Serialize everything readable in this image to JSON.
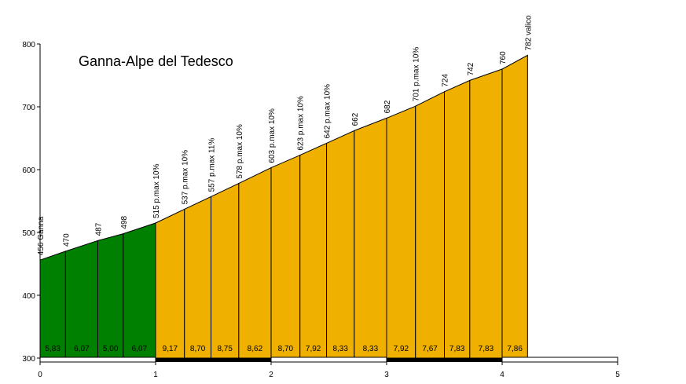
{
  "chart_data": {
    "type": "area",
    "title": "Ganna-Alpe del Tedesco",
    "xlabel": "",
    "ylabel": "",
    "xlim": [
      0,
      5
    ],
    "ylim": [
      300,
      800
    ],
    "x_ticks": [
      0,
      1,
      2,
      3,
      4,
      5
    ],
    "y_ticks": [
      300,
      400,
      500,
      600,
      700,
      800
    ],
    "colors": {
      "low_gradient": "#008000",
      "high_gradient": "#f0b000",
      "outline": "#000000"
    },
    "points": [
      {
        "x": 0.0,
        "elevation": 456,
        "label": "456 Ganna"
      },
      {
        "x": 0.22,
        "elevation": 470,
        "label": "470"
      },
      {
        "x": 0.5,
        "elevation": 487,
        "label": "487"
      },
      {
        "x": 0.72,
        "elevation": 498,
        "label": "498"
      },
      {
        "x": 1.0,
        "elevation": 515,
        "label": "515 p.max 10%"
      },
      {
        "x": 1.25,
        "elevation": 537,
        "label": "537 p.max 10%"
      },
      {
        "x": 1.48,
        "elevation": 557,
        "label": "557 p.max 11%"
      },
      {
        "x": 1.72,
        "elevation": 578,
        "label": "578 p.max 10%"
      },
      {
        "x": 2.0,
        "elevation": 603,
        "label": "603 p.max 10%"
      },
      {
        "x": 2.25,
        "elevation": 623,
        "label": "623 p.max 10%"
      },
      {
        "x": 2.48,
        "elevation": 642,
        "label": "642 p.max 10%"
      },
      {
        "x": 2.72,
        "elevation": 662,
        "label": "662"
      },
      {
        "x": 3.0,
        "elevation": 682,
        "label": "682"
      },
      {
        "x": 3.25,
        "elevation": 701,
        "label": "701 p.max 10%"
      },
      {
        "x": 3.5,
        "elevation": 724,
        "label": "724"
      },
      {
        "x": 3.72,
        "elevation": 742,
        "label": "742"
      },
      {
        "x": 4.0,
        "elevation": 760,
        "label": "760"
      },
      {
        "x": 4.22,
        "elevation": 782,
        "label": "782 valico"
      }
    ],
    "gradients": [
      "5,83",
      "6,07",
      "5,00",
      "6,07",
      "9,17",
      "8,70",
      "8,75",
      "8,62",
      "8,70",
      "7,92",
      "8,33",
      "8,33",
      "7,92",
      "7,67",
      "7,83",
      "7,83",
      "7,86"
    ],
    "segment_colors": [
      "low_gradient",
      "low_gradient",
      "low_gradient",
      "low_gradient",
      "high_gradient",
      "high_gradient",
      "high_gradient",
      "high_gradient",
      "high_gradient",
      "high_gradient",
      "high_gradient",
      "high_gradient",
      "high_gradient",
      "high_gradient",
      "high_gradient",
      "high_gradient",
      "high_gradient"
    ]
  }
}
